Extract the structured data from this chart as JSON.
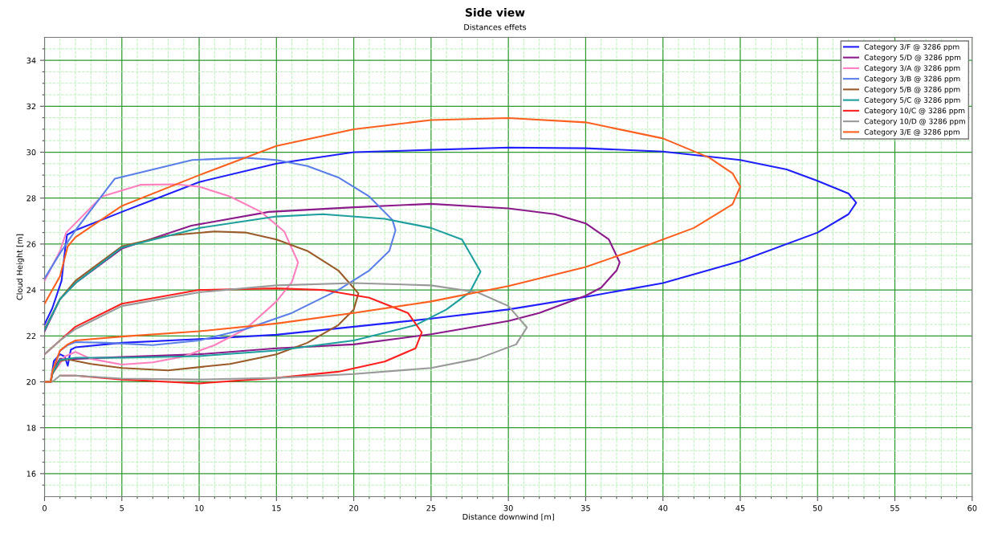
{
  "chart_data": {
    "type": "line",
    "title": "Side view",
    "subtitle": "Distances effets",
    "xlabel": "Distance downwind [m]",
    "ylabel": "Cloud Height [m]",
    "xlim": [
      0,
      60
    ],
    "xticks": [
      0,
      {
        "value": 1,
        "label": null
      },
      {
        "value": 2,
        "label": null
      },
      {
        "value": 3,
        "label": null
      },
      {
        "value": 4,
        "label": null
      },
      5,
      {
        "value": 6,
        "label": null
      },
      {
        "value": 7,
        "label": null
      },
      {
        "value": 8,
        "label": null
      },
      {
        "value": 9,
        "label": null
      },
      10,
      {
        "value": 11,
        "label": null
      },
      {
        "value": 12,
        "label": null
      },
      {
        "value": 13,
        "label": null
      },
      {
        "value": 14,
        "label": null
      },
      15,
      {
        "value": 16,
        "label": null
      },
      {
        "value": 17,
        "label": null
      },
      {
        "value": 18,
        "label": null
      },
      {
        "value": 19,
        "label": null
      },
      20,
      {
        "value": 21,
        "label": null
      },
      {
        "value": 22,
        "label": null
      },
      {
        "value": 23,
        "label": null
      },
      {
        "value": 24,
        "label": null
      },
      25,
      {
        "value": 26,
        "label": null
      },
      {
        "value": 27,
        "label": null
      },
      {
        "value": 28,
        "label": null
      },
      {
        "value": 29,
        "label": null
      },
      30,
      {
        "value": 31,
        "label": null
      },
      {
        "value": 32,
        "label": null
      },
      {
        "value": 33,
        "label": null
      },
      {
        "value": 34,
        "label": null
      },
      35,
      {
        "value": 36,
        "label": null
      },
      {
        "value": 37,
        "label": null
      },
      {
        "value": 38,
        "label": null
      },
      {
        "value": 39,
        "label": null
      },
      40,
      {
        "value": 41,
        "label": null
      },
      {
        "value": 42,
        "label": null
      },
      {
        "value": 43,
        "label": null
      },
      {
        "value": 44,
        "label": null
      },
      45,
      {
        "value": 46,
        "label": null
      },
      {
        "value": 47,
        "label": null
      },
      {
        "value": 48,
        "label": null
      },
      {
        "value": 49,
        "label": null
      },
      50,
      {
        "value": 51,
        "label": null
      },
      {
        "value": 52,
        "label": null
      },
      {
        "value": 53,
        "label": null
      },
      {
        "value": 54,
        "label": null
      },
      55,
      {
        "value": 56,
        "label": null
      },
      {
        "value": 57,
        "label": null
      },
      {
        "value": 58,
        "label": null
      },
      {
        "value": 59,
        "label": null
      },
      60
    ],
    "ylim": [
      15,
      35
    ],
    "yticks": [
      {
        "value": 15.5,
        "label": null
      },
      16,
      {
        "value": 16.5,
        "label": null
      },
      {
        "value": 17,
        "label": null
      },
      {
        "value": 17.5,
        "label": null
      },
      18,
      {
        "value": 18.5,
        "label": null
      },
      {
        "value": 19,
        "label": null
      },
      {
        "value": 19.5,
        "label": null
      },
      20,
      {
        "value": 20.5,
        "label": null
      },
      {
        "value": 21,
        "label": null
      },
      {
        "value": 21.5,
        "label": null
      },
      22,
      {
        "value": 22.5,
        "label": null
      },
      {
        "value": 23,
        "label": null
      },
      {
        "value": 23.5,
        "label": null
      },
      24,
      {
        "value": 24.5,
        "label": null
      },
      {
        "value": 25,
        "label": null
      },
      {
        "value": 25.5,
        "label": null
      },
      26,
      {
        "value": 26.5,
        "label": null
      },
      {
        "value": 27,
        "label": null
      },
      {
        "value": 27.5,
        "label": null
      },
      28,
      {
        "value": 28.5,
        "label": null
      },
      {
        "value": 29,
        "label": null
      },
      {
        "value": 29.5,
        "label": null
      },
      30,
      {
        "value": 30.5,
        "label": null
      },
      {
        "value": 31,
        "label": null
      },
      {
        "value": 31.5,
        "label": null
      },
      32,
      {
        "value": 32.5,
        "label": null
      },
      {
        "value": 33,
        "label": null
      },
      {
        "value": 33.5,
        "label": null
      },
      34,
      {
        "value": 34.5,
        "label": null
      }
    ],
    "grid": true,
    "legend": "top right",
    "marker": "none",
    "line_style": "solid",
    "series": [
      {
        "name": "Category 3/F @ 3286 ppm",
        "color": "#2020ff",
        "x": [
          0,
          0.5,
          1.1,
          1.3,
          1.45,
          2,
          5,
          10,
          15,
          20,
          25,
          30,
          35,
          40,
          45,
          48,
          50,
          52,
          52.5,
          52,
          50,
          45,
          40,
          35,
          30,
          25,
          20,
          15,
          10,
          5,
          2,
          1.7,
          1.5,
          1.3,
          1,
          0.6,
          0.4,
          0
        ],
        "values": [
          22.5,
          23.2,
          24.4,
          25.6,
          26.4,
          26.6,
          27.4,
          28.7,
          29.5,
          30.0,
          30.1,
          30.2,
          30.17,
          30.03,
          29.66,
          29.25,
          28.75,
          28.2,
          27.8,
          27.3,
          26.5,
          25.25,
          24.3,
          23.7,
          23.15,
          22.75,
          22.4,
          22.05,
          21.86,
          21.7,
          21.5,
          21.4,
          20.7,
          21.1,
          21.2,
          20.9,
          20,
          20
        ]
      },
      {
        "name": "Category 5/D @ 3286 ppm",
        "color": "#8b1a8b",
        "x": [
          0,
          1,
          2,
          5,
          9.5,
          14.5,
          20,
          25,
          30,
          33,
          35,
          36.5,
          37.2,
          37,
          36,
          35,
          32,
          30,
          25,
          20,
          15,
          10,
          5,
          2,
          1,
          0.6,
          0.4,
          0
        ],
        "values": [
          22.2,
          23.6,
          24.3,
          25.8,
          26.8,
          27.4,
          27.6,
          27.75,
          27.55,
          27.3,
          26.9,
          26.2,
          25.2,
          24.85,
          24.1,
          23.75,
          23.0,
          22.65,
          22.07,
          21.63,
          21.46,
          21.2,
          21.08,
          21.0,
          21.0,
          20.6,
          20,
          20
        ]
      },
      {
        "name": "Category 3/A @ 3286 ppm",
        "color": "#ff7fbf",
        "x": [
          0,
          1,
          1.4,
          3.7,
          6.2,
          8.5,
          10,
          12,
          14,
          15.5,
          16.4,
          16,
          15,
          13,
          11,
          9,
          7,
          5,
          3,
          2,
          1.3,
          1,
          0.5,
          0.4,
          0
        ],
        "values": [
          24.4,
          25.7,
          26.5,
          28.07,
          28.58,
          28.6,
          28.5,
          28.07,
          27.4,
          26.55,
          25.2,
          24.35,
          23.5,
          22.3,
          21.6,
          21.1,
          20.85,
          20.75,
          21.0,
          21.3,
          21.1,
          20.8,
          20.35,
          20,
          20
        ]
      },
      {
        "name": "Category 3/B @ 3286 ppm",
        "color": "#5b7fe8",
        "x": [
          0,
          1,
          2,
          4.55,
          9.55,
          12.9,
          15,
          17,
          19,
          21,
          22.5,
          22.7,
          22.3,
          21,
          19,
          16,
          13,
          10,
          7,
          4,
          2,
          1.5,
          1,
          0.5,
          0.4,
          0
        ],
        "values": [
          24.5,
          25.6,
          26.6,
          28.85,
          29.66,
          29.76,
          29.66,
          29.4,
          28.9,
          28.07,
          27.05,
          26.6,
          25.7,
          24.85,
          24.0,
          23.0,
          22.3,
          21.8,
          21.6,
          21.7,
          21.73,
          21.6,
          21.35,
          20.45,
          20,
          20
        ]
      },
      {
        "name": "Category 5/B @ 3286 ppm",
        "color": "#9a5a2a",
        "x": [
          0,
          1,
          2,
          5,
          8,
          11,
          13,
          15,
          17,
          19,
          20.3,
          20,
          19,
          17,
          15,
          12,
          8,
          5,
          3,
          1.5,
          1,
          0.5,
          0.4,
          0
        ],
        "values": [
          22.3,
          23.6,
          24.4,
          25.9,
          26.37,
          26.55,
          26.5,
          26.2,
          25.7,
          24.85,
          23.85,
          23.15,
          22.47,
          21.7,
          21.2,
          20.78,
          20.5,
          20.6,
          20.78,
          20.98,
          20.9,
          20.34,
          20,
          20
        ]
      },
      {
        "name": "Category 5/C @ 3286 ppm",
        "color": "#1f9e9e",
        "x": [
          0,
          1,
          2,
          5,
          10,
          15,
          18,
          22,
          25,
          27,
          28.2,
          27.5,
          26,
          24,
          20,
          15,
          10,
          5,
          2,
          1,
          0.5,
          0.4,
          0
        ],
        "values": [
          22.25,
          23.6,
          24.3,
          25.85,
          26.7,
          27.2,
          27.3,
          27.1,
          26.7,
          26.2,
          24.8,
          23.9,
          23.15,
          22.47,
          21.8,
          21.36,
          21.12,
          21.05,
          21.05,
          20.95,
          20.34,
          20,
          20
        ]
      },
      {
        "name": "Category 10/C @ 3286 ppm",
        "color": "#ff2020",
        "x": [
          0,
          1,
          2,
          5,
          10,
          15,
          18,
          21,
          23.5,
          24.4,
          24,
          22,
          19,
          15,
          10,
          5,
          2,
          1
        ],
        "values": [
          21.2,
          21.8,
          22.4,
          23.4,
          24.0,
          24.07,
          24.0,
          23.66,
          23.0,
          22.15,
          21.46,
          20.88,
          20.44,
          20.17,
          19.93,
          20.1,
          20.27,
          20.27
        ]
      },
      {
        "name": "Category 10/D @ 3286 ppm",
        "color": "#999999",
        "x": [
          0,
          1,
          2,
          5,
          10,
          15,
          20,
          25,
          28,
          30,
          31.2,
          30.5,
          28,
          25,
          20,
          15,
          10,
          5,
          2,
          1,
          0.5,
          0
        ],
        "values": [
          21.2,
          21.8,
          22.3,
          23.3,
          23.9,
          24.2,
          24.3,
          24.2,
          23.9,
          23.3,
          22.37,
          21.63,
          21.0,
          20.6,
          20.34,
          20.17,
          20.1,
          20.14,
          20.27,
          20.27,
          20,
          20
        ]
      },
      {
        "name": "Category 3/E @ 3286 ppm",
        "color": "#ff6020",
        "x": [
          0,
          1,
          1.5,
          2,
          5,
          10,
          15,
          20,
          25,
          30,
          35,
          40,
          43,
          44.5,
          45,
          44.5,
          42,
          38,
          35,
          30,
          25,
          20,
          15,
          10,
          5,
          2,
          1.5,
          1,
          0.5,
          0.4,
          0
        ],
        "values": [
          23.4,
          24.6,
          25.9,
          26.3,
          27.66,
          29.0,
          30.27,
          31.0,
          31.4,
          31.49,
          31.3,
          30.6,
          29.76,
          29.08,
          28.5,
          27.73,
          26.7,
          25.7,
          25.0,
          24.17,
          23.5,
          23.0,
          22.54,
          22.2,
          21.97,
          21.8,
          21.63,
          21.36,
          20.45,
          20,
          20
        ]
      }
    ]
  }
}
